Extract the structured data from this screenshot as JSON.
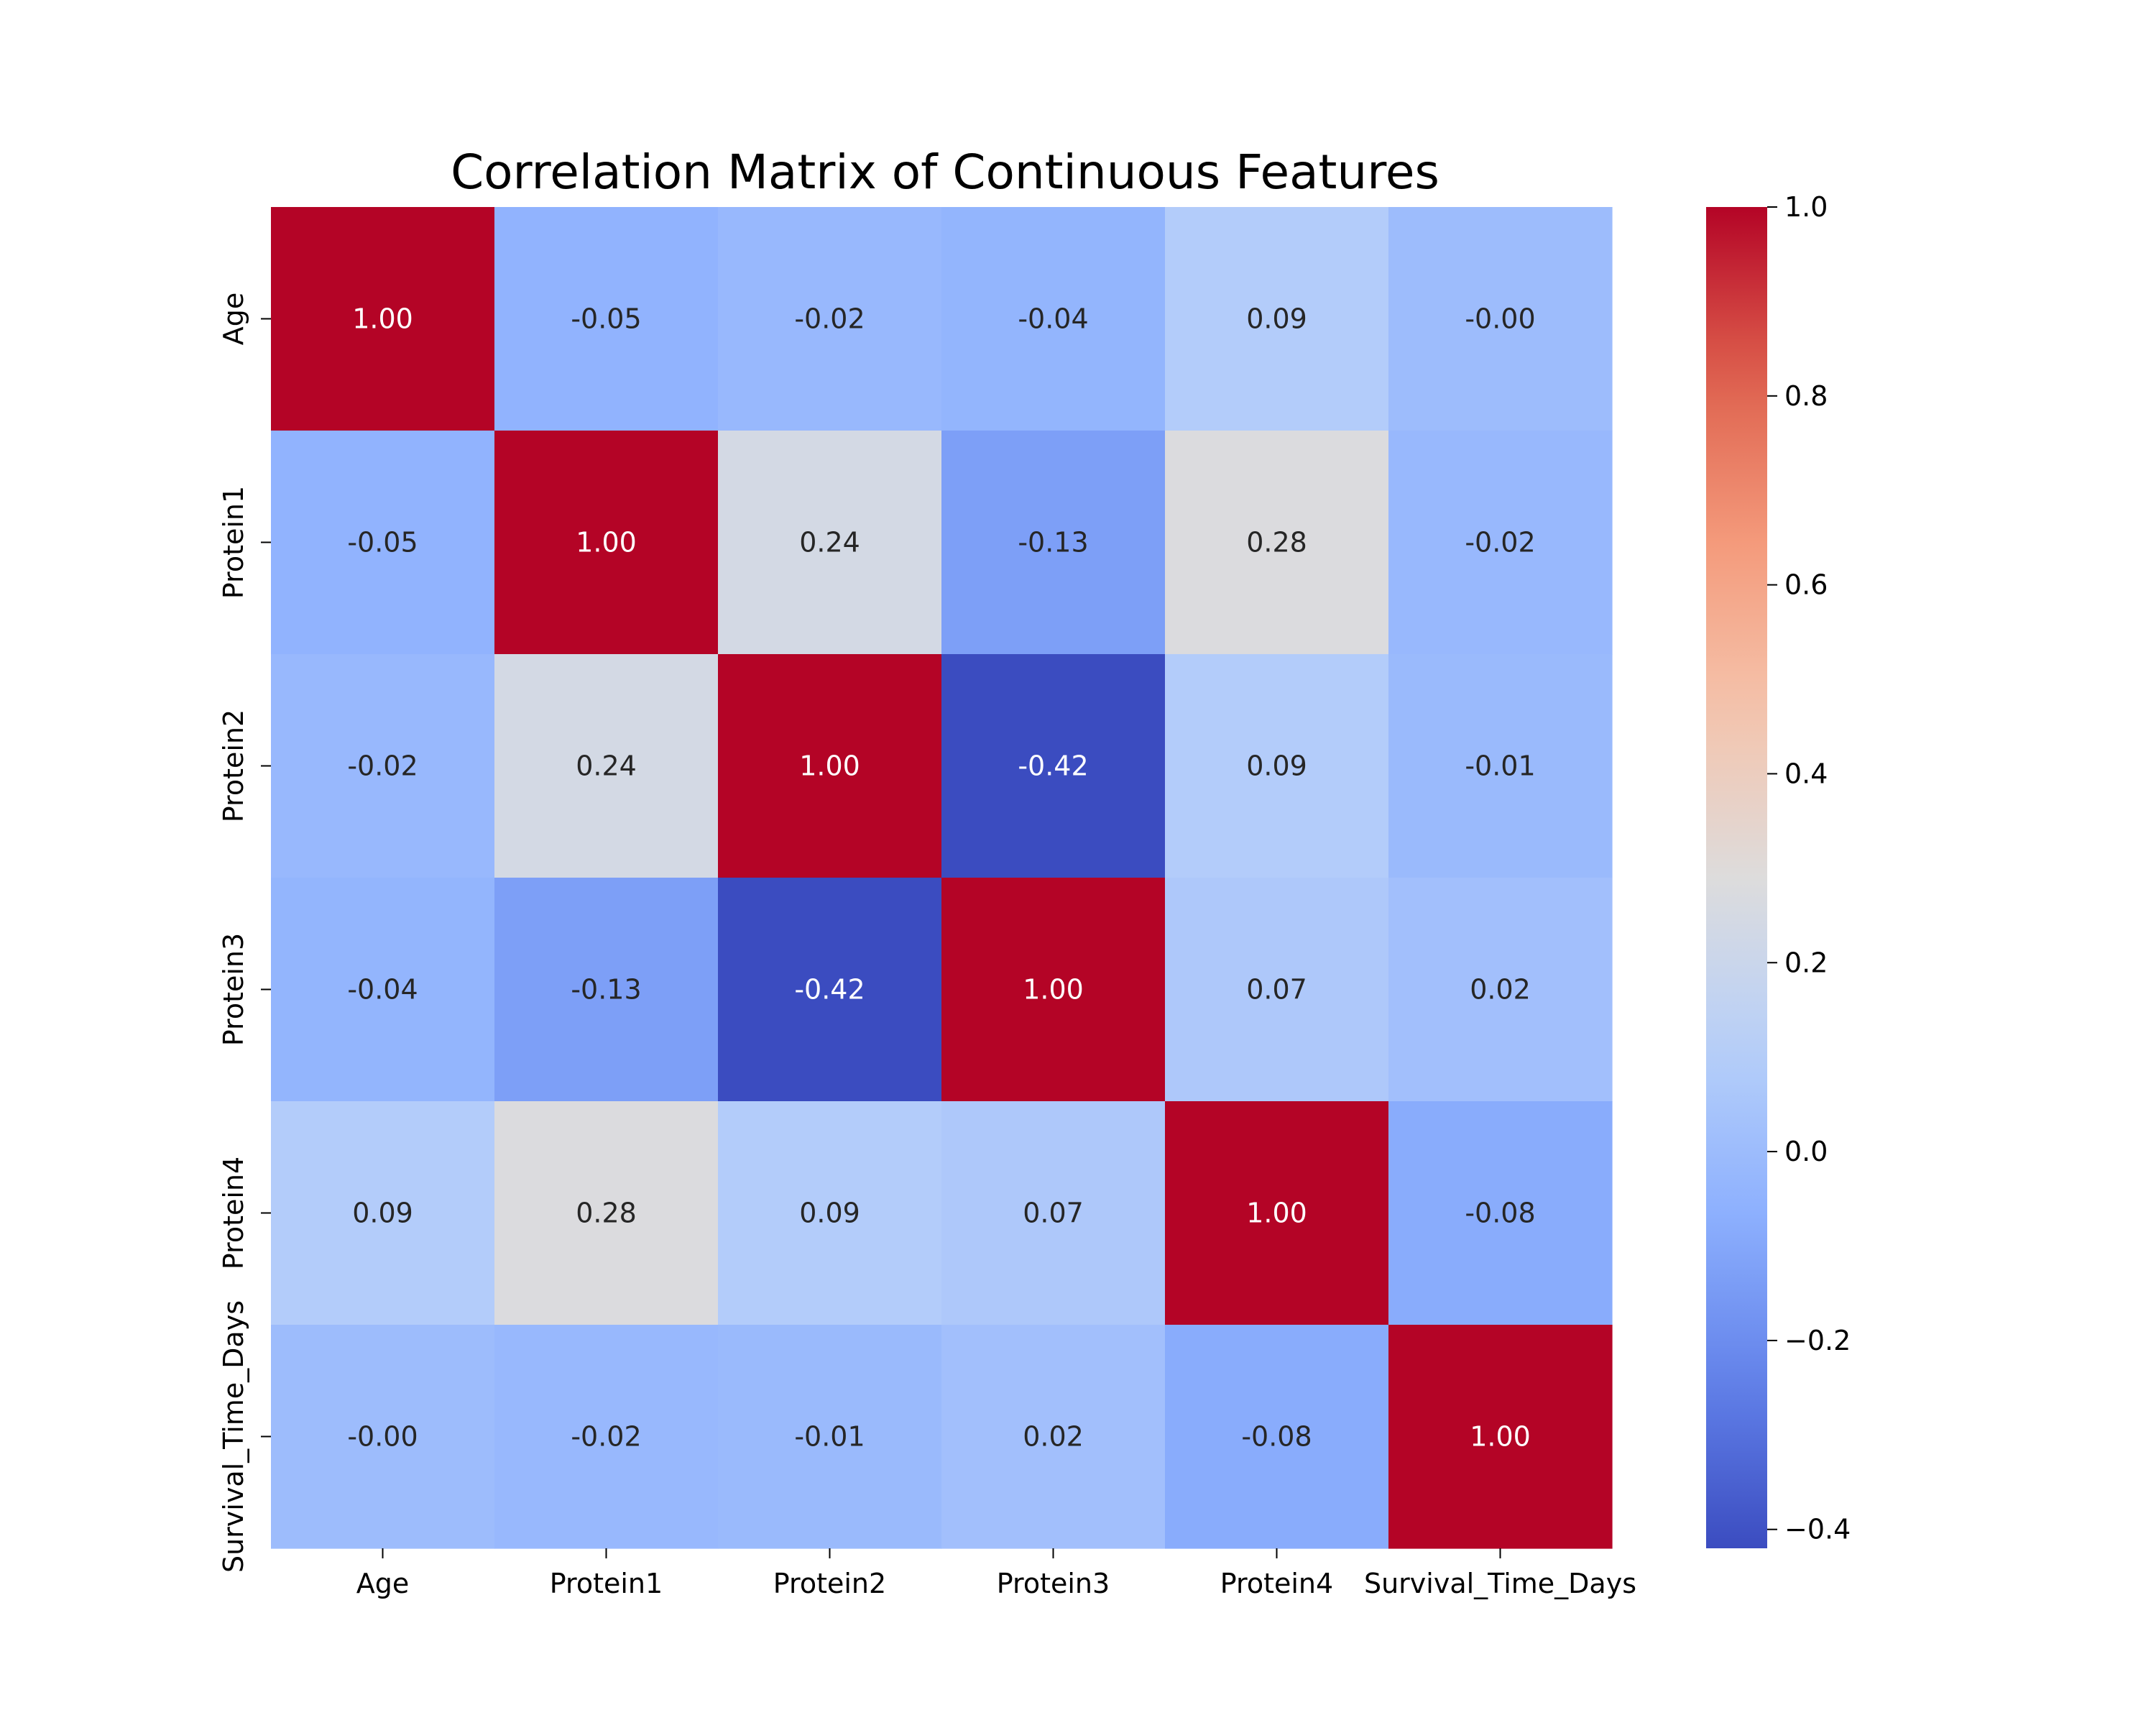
{
  "chart_data": {
    "type": "heatmap",
    "title": "Correlation Matrix of Continuous Features",
    "xlabel": "",
    "ylabel": "",
    "x_categories": [
      "Age",
      "Protein1",
      "Protein2",
      "Protein3",
      "Protein4",
      "Survival_Time_Days"
    ],
    "y_categories": [
      "Age",
      "Protein1",
      "Protein2",
      "Protein3",
      "Protein4",
      "Survival_Time_Days"
    ],
    "values": [
      [
        1.0,
        -0.05,
        -0.02,
        -0.04,
        0.09,
        -0.0
      ],
      [
        -0.05,
        1.0,
        0.24,
        -0.13,
        0.28,
        -0.02
      ],
      [
        -0.02,
        0.24,
        1.0,
        -0.42,
        0.09,
        -0.01
      ],
      [
        -0.04,
        -0.13,
        -0.42,
        1.0,
        0.07,
        0.02
      ],
      [
        0.09,
        0.28,
        0.09,
        0.07,
        1.0,
        -0.08
      ],
      [
        -0.0,
        -0.02,
        -0.01,
        0.02,
        -0.08,
        1.0
      ]
    ],
    "annotations": [
      [
        "1.00",
        "-0.05",
        "-0.02",
        "-0.04",
        "0.09",
        "-0.00"
      ],
      [
        "-0.05",
        "1.00",
        "0.24",
        "-0.13",
        "0.28",
        "-0.02"
      ],
      [
        "-0.02",
        "0.24",
        "1.00",
        "-0.42",
        "0.09",
        "-0.01"
      ],
      [
        "-0.04",
        "-0.13",
        "-0.42",
        "1.00",
        "0.07",
        "0.02"
      ],
      [
        "0.09",
        "0.28",
        "0.09",
        "0.07",
        "1.00",
        "-0.08"
      ],
      [
        "-0.00",
        "-0.02",
        "-0.01",
        "0.02",
        "-0.08",
        "1.00"
      ]
    ],
    "colormap": "coolwarm",
    "color_range": [
      -0.42,
      1.0
    ],
    "colorbar_ticks": [
      {
        "value": 1.0,
        "label": "1.0"
      },
      {
        "value": 0.8,
        "label": "0.8"
      },
      {
        "value": 0.6,
        "label": "0.6"
      },
      {
        "value": 0.4,
        "label": "0.4"
      },
      {
        "value": 0.2,
        "label": "0.2"
      },
      {
        "value": 0.0,
        "label": "0.0"
      },
      {
        "value": -0.2,
        "label": "−0.2"
      },
      {
        "value": -0.4,
        "label": "−0.4"
      }
    ],
    "colors": {
      "low": "#3b4cc0",
      "mid": "#dddcdc",
      "high": "#b40426",
      "text_dark": "#262626",
      "text_light": "#ffffff"
    },
    "legend": "colorbar-right",
    "grid": false
  }
}
